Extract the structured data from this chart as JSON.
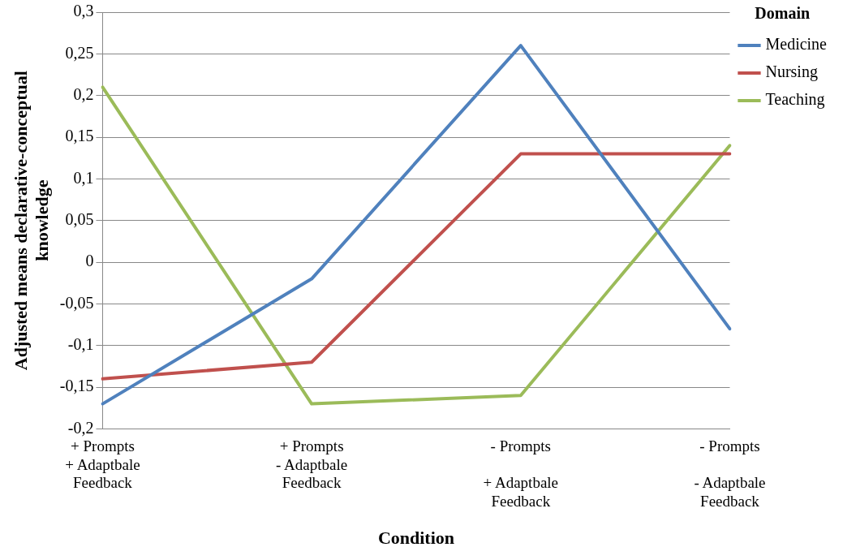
{
  "chart_data": {
    "type": "line",
    "xlabel": "Condition",
    "ylabel": "Adjusted means declarative-conceptual knowledge",
    "legend_title": "Domain",
    "categories": [
      "+ Prompts\n+ Adaptbale\nFeedback",
      "+ Prompts\n- Adaptbale\nFeedback",
      "- Prompts\n\n+ Adaptbale\nFeedback",
      "- Prompts\n\n- Adaptbale\nFeedback"
    ],
    "series": [
      {
        "name": "Medicine",
        "color": "#4f81bd",
        "values": [
          -0.17,
          -0.02,
          0.26,
          -0.08
        ]
      },
      {
        "name": "Nursing",
        "color": "#c0504d",
        "values": [
          -0.14,
          -0.12,
          0.13,
          0.13
        ]
      },
      {
        "name": "Teaching",
        "color": "#9bbb59",
        "values": [
          0.21,
          -0.17,
          -0.16,
          0.14
        ]
      }
    ],
    "ylim": [
      -0.2,
      0.3
    ],
    "yticks": [
      {
        "value": -0.2,
        "label": "-0,2"
      },
      {
        "value": -0.15,
        "label": "-0,15"
      },
      {
        "value": -0.1,
        "label": "-0,1"
      },
      {
        "value": -0.05,
        "label": "-0,05"
      },
      {
        "value": 0,
        "label": "0"
      },
      {
        "value": 0.05,
        "label": "0,05"
      },
      {
        "value": 0.1,
        "label": "0,1"
      },
      {
        "value": 0.15,
        "label": "0,15"
      },
      {
        "value": 0.2,
        "label": "0,2"
      },
      {
        "value": 0.25,
        "label": "0,25"
      },
      {
        "value": 0.3,
        "label": "0,3"
      }
    ],
    "grid": "y",
    "legend": "right",
    "marker": "none",
    "line_style": "solid"
  }
}
